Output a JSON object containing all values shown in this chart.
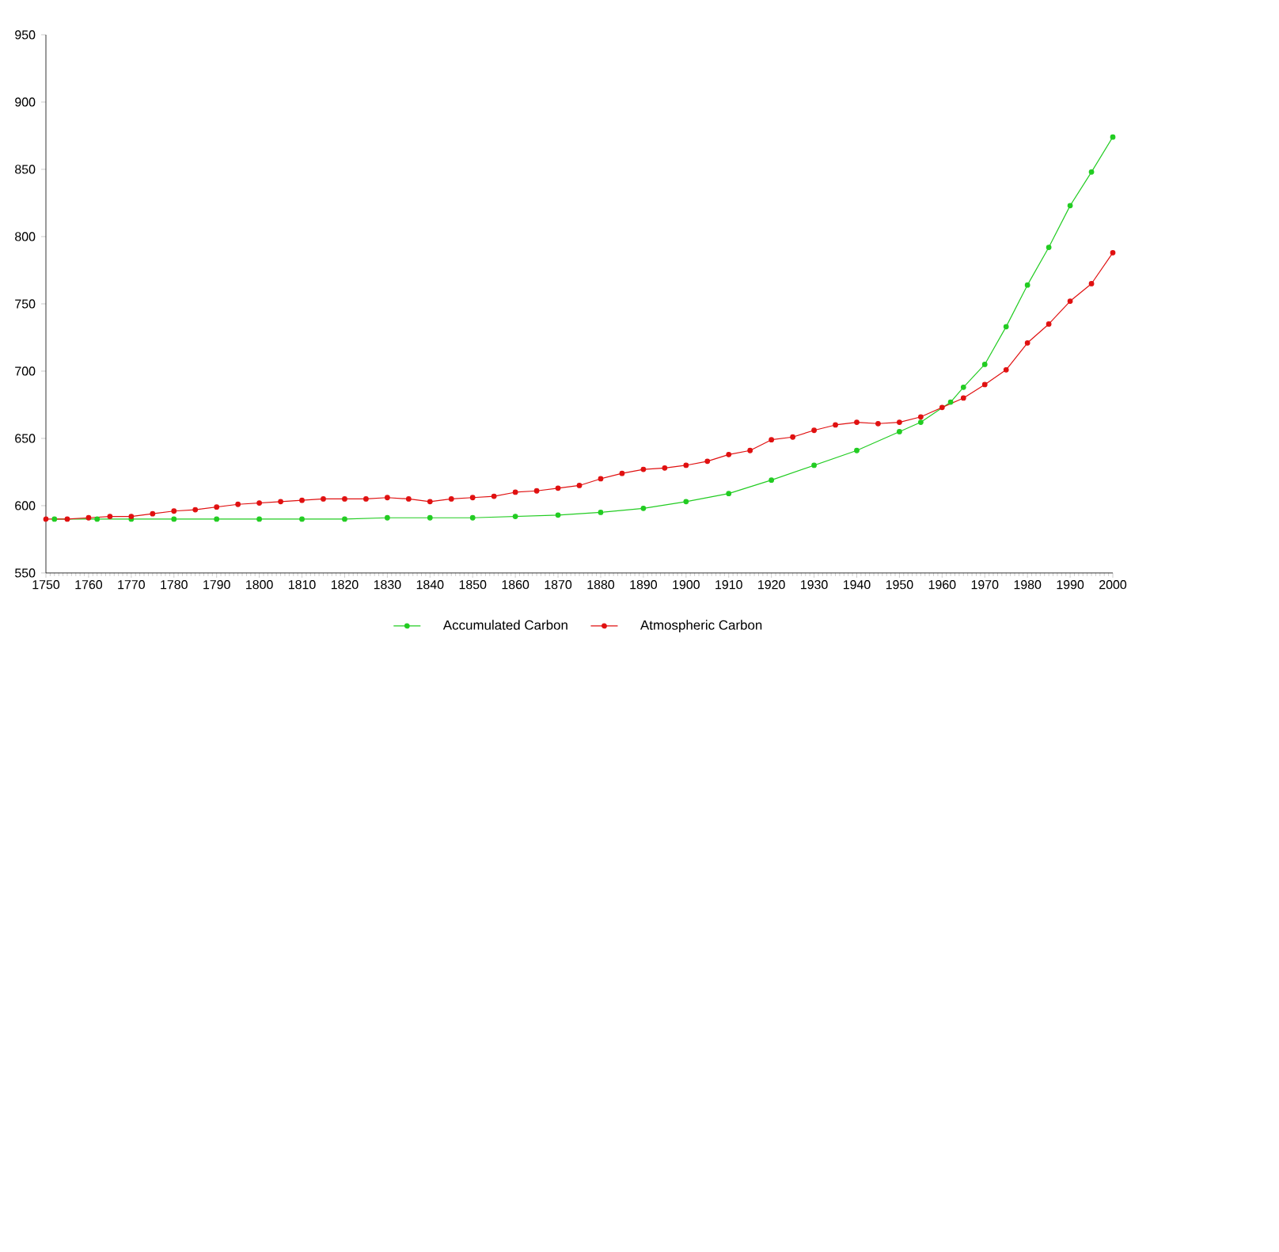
{
  "chart_data": {
    "type": "line",
    "xlim": [
      1750,
      2000
    ],
    "xticks": [
      1750,
      1760,
      1770,
      1780,
      1790,
      1800,
      1810,
      1820,
      1830,
      1840,
      1850,
      1860,
      1870,
      1880,
      1890,
      1900,
      1910,
      1920,
      1930,
      1940,
      1950,
      1960,
      1970,
      1980,
      1990,
      2000
    ],
    "ylim": [
      550,
      950
    ],
    "yticks": [
      550,
      600,
      650,
      700,
      750,
      800,
      850,
      900,
      950
    ],
    "grid": false,
    "legend": "bottom",
    "marker": "circle",
    "line_style": "solid",
    "series": [
      {
        "name": "Accumulated Carbon",
        "color": "#22cc22",
        "x": [
          1752,
          1762,
          1770,
          1780,
          1790,
          1800,
          1810,
          1820,
          1830,
          1840,
          1850,
          1860,
          1870,
          1880,
          1890,
          1900,
          1910,
          1920,
          1930,
          1940,
          1950,
          1955,
          1962,
          1965,
          1970,
          1975,
          1980,
          1985,
          1990,
          1995,
          2000
        ],
        "values": [
          590,
          590,
          590,
          590,
          590,
          590,
          590,
          590,
          591,
          591,
          591,
          592,
          593,
          595,
          598,
          603,
          609,
          619,
          630,
          641,
          655,
          662,
          677,
          688,
          705,
          733,
          764,
          792,
          823,
          848,
          874
        ]
      },
      {
        "name": "Atmospheric Carbon",
        "color": "#e01010",
        "x": [
          1750,
          1755,
          1760,
          1765,
          1770,
          1775,
          1780,
          1785,
          1790,
          1795,
          1800,
          1805,
          1810,
          1815,
          1820,
          1825,
          1830,
          1835,
          1840,
          1845,
          1850,
          1855,
          1860,
          1865,
          1870,
          1875,
          1880,
          1885,
          1890,
          1895,
          1900,
          1905,
          1910,
          1915,
          1920,
          1925,
          1930,
          1935,
          1940,
          1945,
          1950,
          1955,
          1960,
          1965,
          1970,
          1975,
          1980,
          1985,
          1990,
          1995,
          2000
        ],
        "values": [
          590,
          590,
          591,
          592,
          592,
          594,
          596,
          597,
          599,
          601,
          602,
          603,
          604,
          605,
          605,
          605,
          606,
          605,
          603,
          605,
          606,
          607,
          610,
          611,
          613,
          615,
          620,
          624,
          627,
          628,
          630,
          633,
          638,
          641,
          649,
          651,
          656,
          660,
          662,
          661,
          662,
          666,
          673,
          680,
          690,
          701,
          721,
          735,
          752,
          765,
          788
        ]
      }
    ]
  }
}
